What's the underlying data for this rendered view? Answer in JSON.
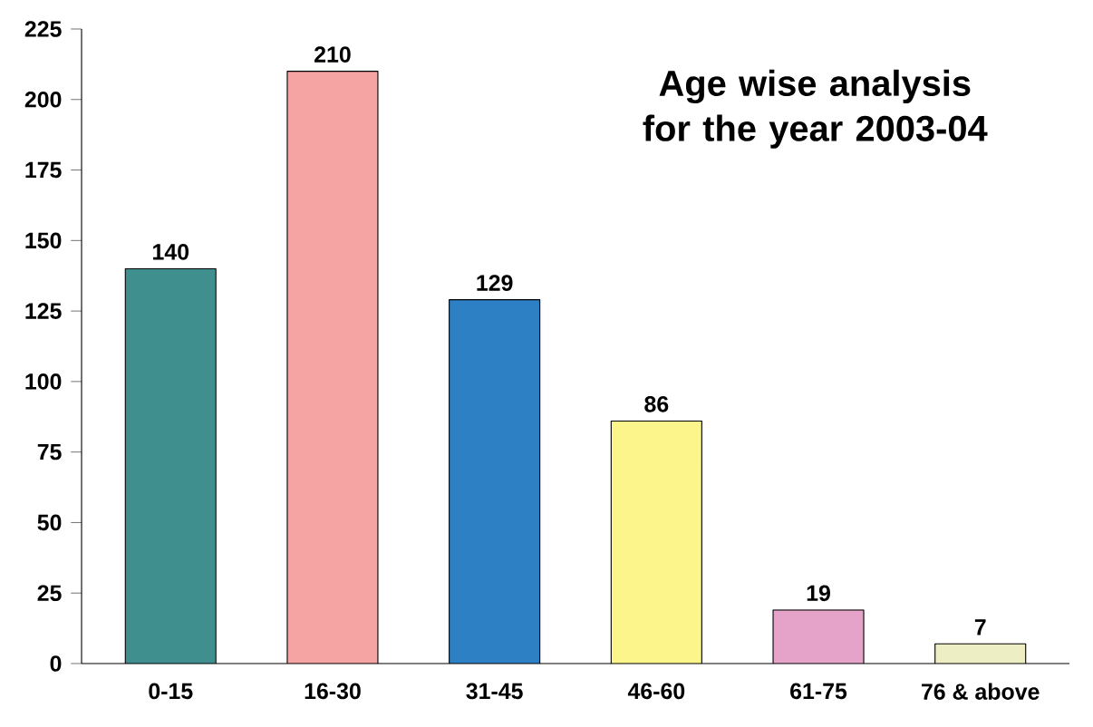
{
  "chart_data": {
    "type": "bar",
    "title": "Age wise analysis for the year 2003-04",
    "categories": [
      "0-15",
      "16-30",
      "31-45",
      "46-60",
      "61-75",
      "76 & above"
    ],
    "values": [
      140,
      210,
      129,
      86,
      19,
      7
    ],
    "colors": [
      "#3f8f8f",
      "#f5a3a3",
      "#2e80c4",
      "#fcf58c",
      "#e6a3c9",
      "#eeeec4"
    ],
    "ylim": [
      0,
      225
    ],
    "yticks": [
      0,
      25,
      50,
      75,
      100,
      125,
      150,
      175,
      200,
      225
    ],
    "data_labels": true,
    "grid": false
  }
}
